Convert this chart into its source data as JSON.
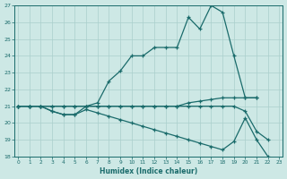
{
  "xlabel": "Humidex (Indice chaleur)",
  "xlim_min": -0.3,
  "xlim_max": 23.3,
  "ylim_min": 18,
  "ylim_max": 27,
  "yticks": [
    18,
    19,
    20,
    21,
    22,
    23,
    24,
    25,
    26,
    27
  ],
  "xticks": [
    0,
    1,
    2,
    3,
    4,
    5,
    6,
    7,
    8,
    9,
    10,
    11,
    12,
    13,
    14,
    15,
    16,
    17,
    18,
    19,
    20,
    21,
    22,
    23
  ],
  "bg_color": "#cde8e5",
  "grid_color": "#aacfcc",
  "line_color": "#1a6b6b",
  "line1_x": [
    0,
    1,
    2,
    3,
    4,
    5,
    6,
    7,
    8,
    9,
    10,
    11,
    12,
    13,
    14,
    15,
    16,
    17,
    18,
    19,
    20,
    21
  ],
  "line1_y": [
    21.0,
    21.0,
    21.0,
    21.0,
    21.0,
    21.0,
    21.0,
    21.2,
    22.5,
    23.1,
    24.0,
    24.0,
    24.5,
    24.5,
    24.5,
    26.3,
    25.6,
    27.0,
    26.6,
    24.0,
    21.5,
    21.5
  ],
  "line2_x": [
    0,
    1,
    2,
    3,
    4,
    5,
    6,
    7,
    8,
    9,
    10,
    11,
    12,
    13,
    14,
    15,
    16,
    17,
    18,
    19,
    20,
    21
  ],
  "line2_y": [
    21.0,
    21.0,
    21.0,
    21.0,
    21.0,
    21.0,
    21.0,
    21.0,
    21.0,
    21.0,
    21.0,
    21.0,
    21.0,
    21.0,
    21.0,
    21.2,
    21.3,
    21.4,
    21.5,
    21.5,
    21.5,
    21.5
  ],
  "line3_x": [
    0,
    1,
    2,
    3,
    4,
    5,
    6,
    7,
    8,
    9,
    10,
    11,
    12,
    13,
    14,
    15,
    16,
    17,
    18,
    19,
    20,
    21,
    22
  ],
  "line3_y": [
    21.0,
    21.0,
    21.0,
    20.7,
    20.5,
    20.5,
    21.0,
    21.0,
    21.0,
    21.0,
    21.0,
    21.0,
    21.0,
    21.0,
    21.0,
    21.0,
    21.0,
    21.0,
    21.0,
    21.0,
    20.7,
    19.5,
    19.0
  ],
  "line4_x": [
    0,
    1,
    2,
    3,
    4,
    5,
    6,
    7,
    8,
    9,
    10,
    11,
    12,
    13,
    14,
    15,
    16,
    17,
    18,
    19,
    20,
    21,
    22,
    23
  ],
  "line4_y": [
    21.0,
    21.0,
    21.0,
    20.7,
    20.5,
    20.5,
    20.8,
    20.6,
    20.4,
    20.2,
    20.0,
    19.8,
    19.6,
    19.4,
    19.2,
    19.0,
    18.8,
    18.6,
    18.4,
    18.9,
    20.3,
    19.0,
    18.0,
    17.7
  ]
}
